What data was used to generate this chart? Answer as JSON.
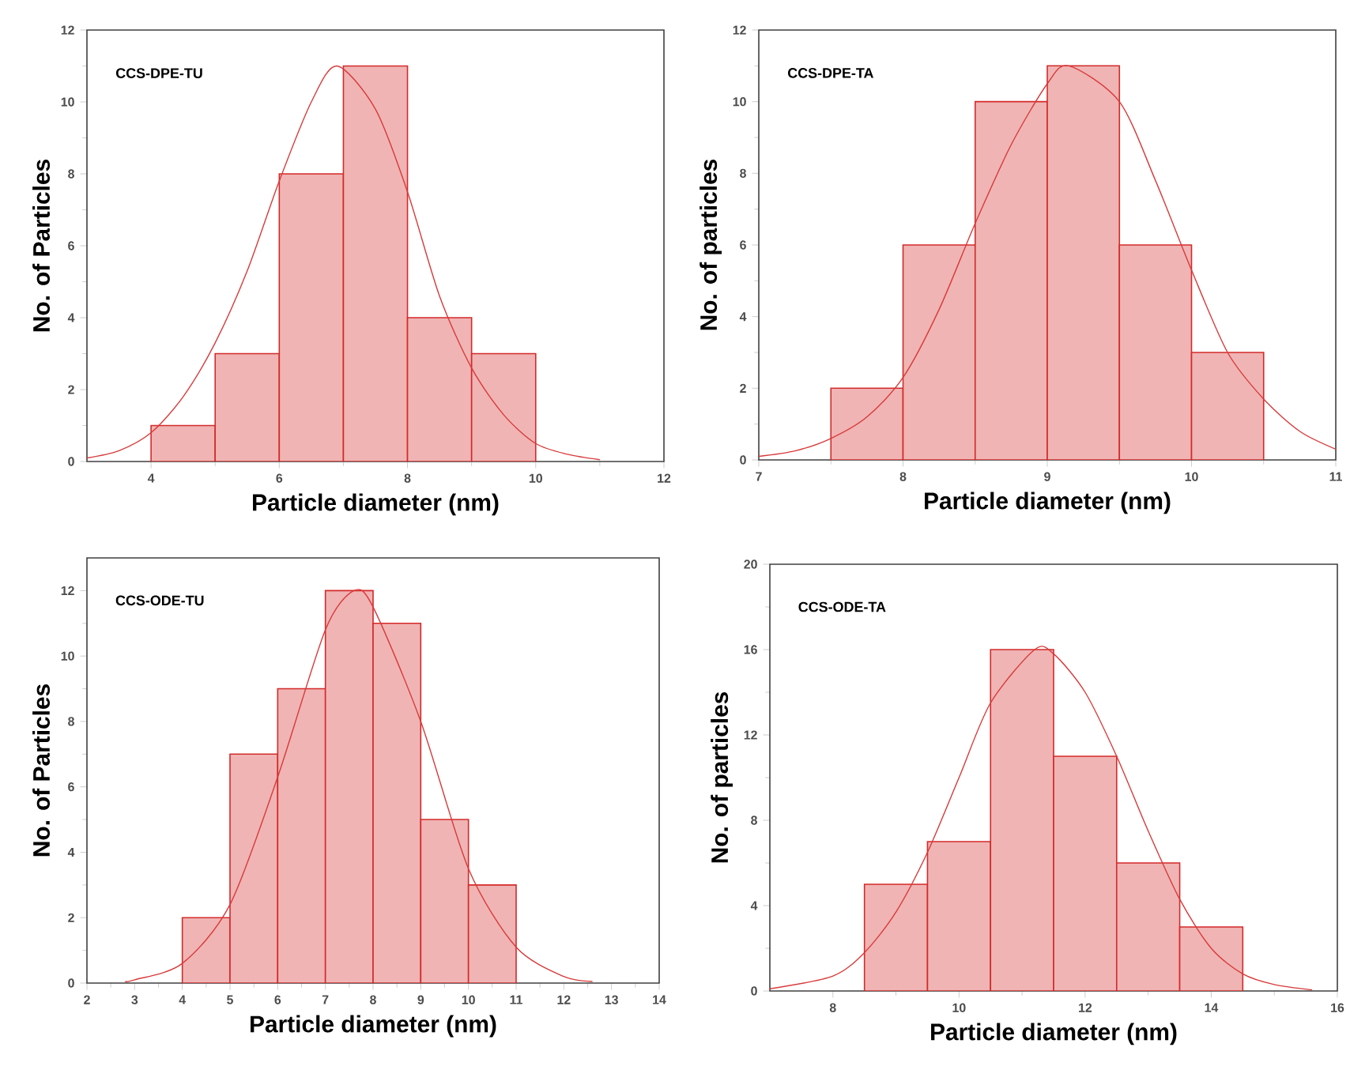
{
  "chart_data": [
    {
      "type": "histogram",
      "title": "CCS-DPE-TU",
      "xlabel": "Particle diameter (nm)",
      "ylabel": "No. of Particles",
      "bins": [
        4,
        5,
        6,
        7,
        8,
        9,
        10
      ],
      "values": [
        1,
        3,
        8,
        11,
        4,
        3
      ],
      "color": "#d42a2a",
      "xlim": [
        3,
        12
      ],
      "ylim": [
        0,
        12
      ],
      "xticks": [
        4,
        6,
        8,
        10,
        12
      ],
      "yticks": [
        0,
        2,
        4,
        6,
        8,
        10,
        12
      ],
      "series": [
        {
          "type": "line",
          "color": "#d83a3a",
          "x": [
            3,
            3.5,
            4,
            4.5,
            5,
            5.5,
            6,
            6.5,
            6.9,
            7.5,
            8,
            8.5,
            9,
            9.5,
            10,
            10.5,
            11
          ],
          "values": [
            0.1,
            0.3,
            0.8,
            1.8,
            3.3,
            5.3,
            7.8,
            10,
            11,
            9.8,
            7.5,
            4.6,
            2.6,
            1.3,
            0.5,
            0.2,
            0.05
          ]
        }
      ]
    },
    {
      "type": "histogram",
      "title": "CCS-DPE-TA",
      "xlabel": "Particle diameter (nm)",
      "ylabel": "No. of particles",
      "bins": [
        7.5,
        8,
        8.5,
        9,
        9.5,
        10,
        10.5
      ],
      "values": [
        2,
        6,
        10,
        11,
        6,
        3
      ],
      "color": "#d42a2a",
      "xlim": [
        7,
        11
      ],
      "ylim": [
        0,
        12
      ],
      "xticks": [
        7,
        8,
        9,
        10,
        11
      ],
      "yticks": [
        0,
        2,
        4,
        6,
        8,
        10,
        12
      ],
      "series": [
        {
          "type": "line",
          "color": "#d83a3a",
          "x": [
            7,
            7.25,
            7.5,
            7.75,
            8,
            8.25,
            8.5,
            8.75,
            9,
            9.15,
            9.5,
            9.75,
            10,
            10.25,
            10.5,
            10.75,
            11
          ],
          "values": [
            0.1,
            0.25,
            0.6,
            1.2,
            2.3,
            4.2,
            6.6,
            8.8,
            10.5,
            11,
            10,
            7.8,
            5.3,
            3,
            1.7,
            0.8,
            0.3
          ]
        }
      ]
    },
    {
      "type": "histogram",
      "title": "CCS-ODE-TU",
      "xlabel": "Particle diameter (nm)",
      "ylabel": "No. of Particles",
      "bins": [
        4,
        5,
        6,
        7,
        8,
        9,
        10,
        11
      ],
      "values": [
        2,
        7,
        9,
        12,
        11,
        5,
        3
      ],
      "color": "#d42a2a",
      "xlim": [
        2,
        14
      ],
      "ylim": [
        0,
        13
      ],
      "xticks": [
        2,
        3,
        4,
        5,
        6,
        7,
        8,
        9,
        10,
        11,
        12,
        13,
        14
      ],
      "yticks": [
        0,
        2,
        4,
        6,
        8,
        10,
        12
      ],
      "series": [
        {
          "type": "line",
          "color": "#d83a3a",
          "x": [
            2.8,
            3,
            4,
            5,
            6,
            7,
            7.6,
            8,
            9,
            10,
            11,
            12,
            12.6
          ],
          "values": [
            0.05,
            0.1,
            0.6,
            2.4,
            6.3,
            10.8,
            12,
            11.5,
            8,
            3.5,
            1.1,
            0.2,
            0.05
          ]
        }
      ]
    },
    {
      "type": "histogram",
      "title": "CCS-ODE-TA",
      "xlabel": "Particle diameter (nm)",
      "ylabel": "No. of particles",
      "bins": [
        8.5,
        9.5,
        10.5,
        11.5,
        12.5,
        13.5,
        14.5
      ],
      "values": [
        5,
        7,
        16,
        11,
        6,
        3
      ],
      "color": "#d42a2a",
      "xlim": [
        7,
        16
      ],
      "ylim": [
        0,
        20
      ],
      "xticks": [
        8,
        10,
        12,
        14,
        16
      ],
      "yticks": [
        0,
        4,
        8,
        12,
        16,
        20
      ],
      "series": [
        {
          "type": "line",
          "color": "#d83a3a",
          "x": [
            7,
            8,
            8.5,
            9,
            9.5,
            10,
            10.5,
            11.2,
            11.5,
            12,
            12.5,
            13,
            13.5,
            14,
            14.5,
            15,
            15.6
          ],
          "values": [
            0.1,
            0.7,
            1.8,
            3.7,
            6.5,
            10,
            13.5,
            16,
            15.8,
            14,
            11,
            7.5,
            4.3,
            2,
            0.8,
            0.3,
            0.05
          ]
        }
      ]
    }
  ]
}
